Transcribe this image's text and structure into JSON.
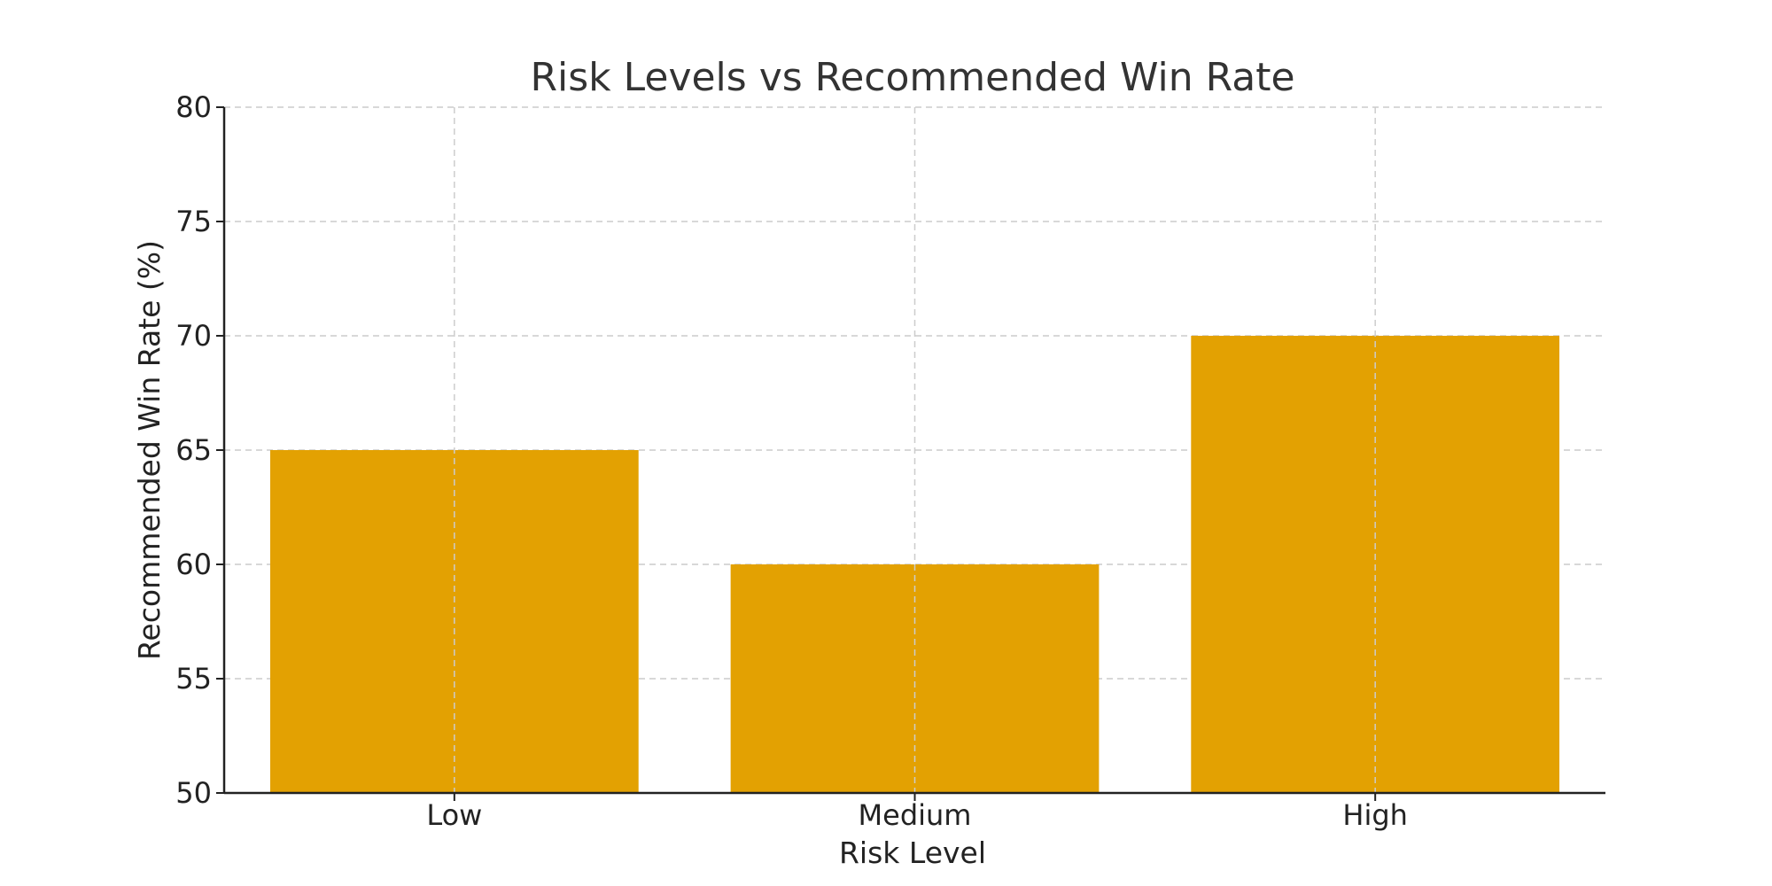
{
  "chart_data": {
    "type": "bar",
    "title": "Risk Levels vs Recommended Win Rate",
    "xlabel": "Risk Level",
    "ylabel": "Recommended Win Rate (%)",
    "categories": [
      "Low",
      "Medium",
      "High"
    ],
    "values": [
      65,
      60,
      70
    ],
    "ylim": [
      50,
      80
    ],
    "yticks": [
      50,
      55,
      60,
      65,
      70,
      75,
      80
    ],
    "grid": true,
    "bar_color": "#E3A102"
  }
}
